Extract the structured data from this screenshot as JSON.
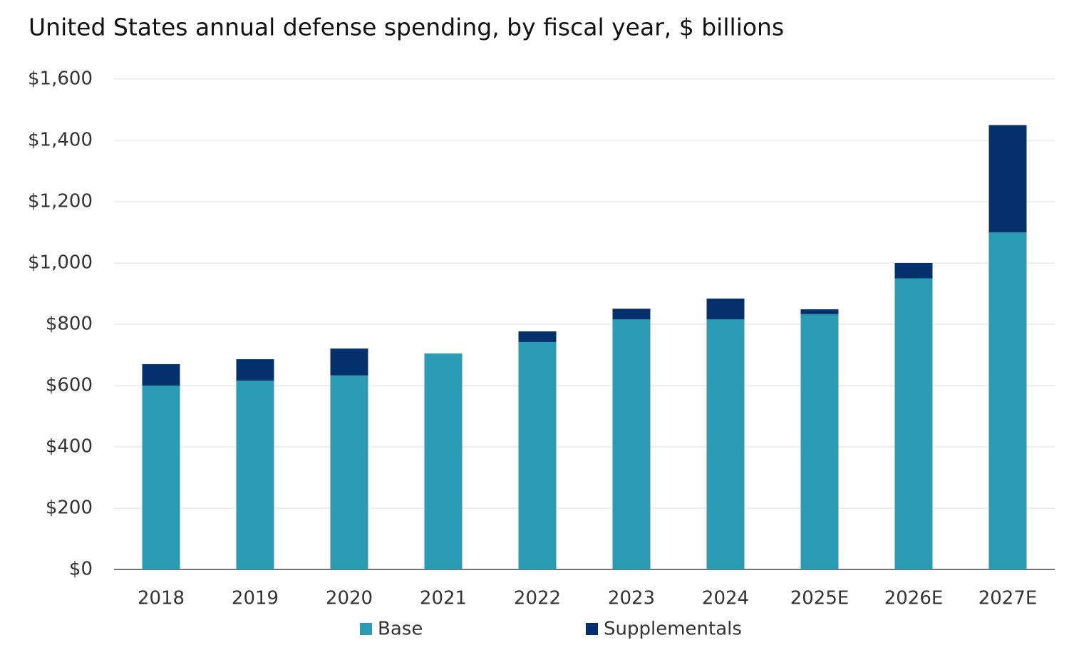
{
  "chart_data": {
    "type": "stacked_bar",
    "title": "United States annual defense spending, by fiscal year, $ billions",
    "categories": [
      "2018",
      "2019",
      "2020",
      "2021",
      "2022",
      "2023",
      "2024",
      "2025E",
      "2026E",
      "2027E"
    ],
    "series": [
      {
        "name": "Base",
        "color": "#2b9ab3",
        "values": [
          600,
          616,
          633,
          705,
          742,
          816,
          816,
          833,
          950,
          1100
        ]
      },
      {
        "name": "Supplementals",
        "color": "#04306b",
        "values": [
          70,
          70,
          88,
          0,
          35,
          35,
          68,
          16,
          50,
          350
        ]
      }
    ],
    "ylim": [
      0,
      1600
    ],
    "yticks": [
      {
        "value": 0,
        "label": "$0"
      },
      {
        "value": 200,
        "label": "$200"
      },
      {
        "value": 400,
        "label": "$400"
      },
      {
        "value": 600,
        "label": "$600"
      },
      {
        "value": 800,
        "label": "$800"
      },
      {
        "value": 1000,
        "label": "$1,000"
      },
      {
        "value": 1200,
        "label": "$1,200"
      },
      {
        "value": 1400,
        "label": "$1,400"
      },
      {
        "value": 1600,
        "label": "$1,600"
      }
    ],
    "grid": true
  }
}
